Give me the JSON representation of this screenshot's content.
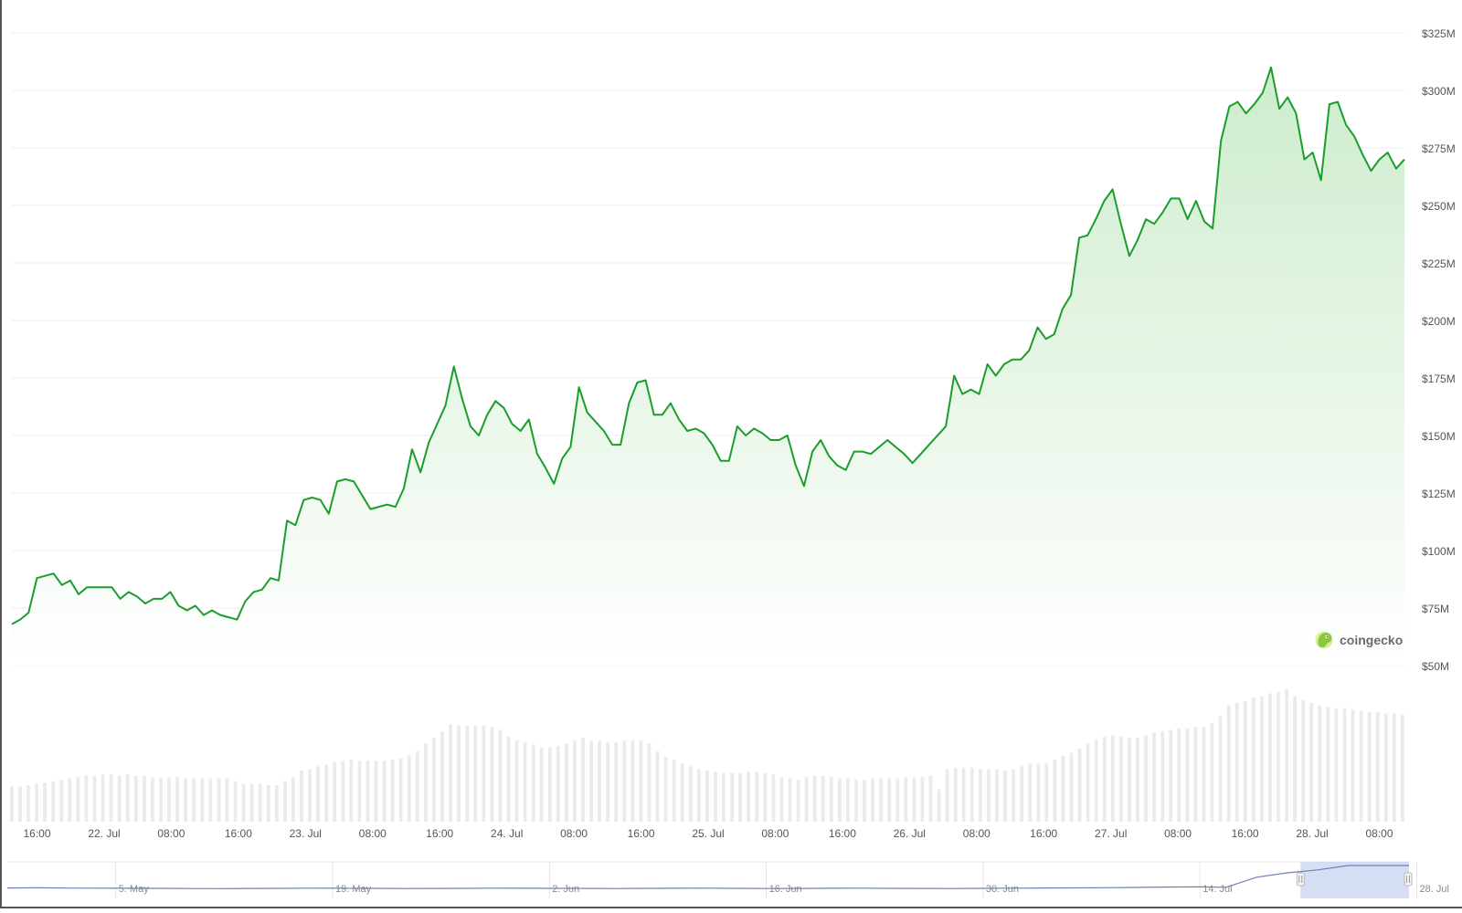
{
  "chart_data": {
    "type": "area",
    "title": "",
    "xlabel": "",
    "ylabel": "",
    "y_unit_prefix": "$",
    "y_ticks": [
      "$50M",
      "$75M",
      "$100M",
      "$125M",
      "$150M",
      "$175M",
      "$200M",
      "$225M",
      "$250M",
      "$275M",
      "$300M",
      "$325M"
    ],
    "ylim": [
      50,
      325
    ],
    "grid": true,
    "x_ticks": [
      "16:00",
      "22. Jul",
      "08:00",
      "16:00",
      "23. Jul",
      "08:00",
      "16:00",
      "24. Jul",
      "08:00",
      "16:00",
      "25. Jul",
      "08:00",
      "16:00",
      "26. Jul",
      "08:00",
      "16:00",
      "27. Jul",
      "08:00",
      "16:00",
      "28. Jul",
      "08:00"
    ],
    "x_start_hour": 13,
    "x_end_hour": 179,
    "series": [
      {
        "values": [
          68,
          70,
          73,
          88,
          89,
          90,
          85,
          87,
          81,
          84,
          84,
          84,
          84,
          79,
          82,
          80,
          77,
          79,
          79,
          82,
          76,
          74,
          76,
          72,
          74,
          72,
          71,
          70,
          78,
          82,
          83,
          88,
          87,
          113,
          111,
          122,
          123,
          122,
          116,
          130,
          131,
          130,
          124,
          118,
          119,
          120,
          119,
          127,
          144,
          134,
          147,
          155,
          163,
          180,
          166,
          154,
          150,
          159,
          165,
          162,
          155,
          152,
          157,
          142,
          136,
          129,
          140,
          145,
          171,
          160,
          156,
          152,
          146,
          146,
          164,
          173,
          174,
          159,
          159,
          164,
          157,
          152,
          153,
          151,
          146,
          139,
          139,
          154,
          150,
          153,
          151,
          148,
          148,
          150,
          137,
          128,
          143,
          148,
          141,
          137,
          135,
          143,
          143,
          142,
          145,
          148,
          145,
          142,
          138,
          142,
          146,
          150,
          154,
          176,
          168,
          170,
          168,
          181,
          176,
          181,
          183,
          183,
          187,
          197,
          192,
          194,
          205,
          211,
          236,
          237,
          244,
          252,
          257,
          242,
          228,
          235,
          244,
          242,
          247,
          253,
          253,
          244,
          252,
          243,
          240,
          278,
          293,
          295,
          290,
          294,
          299,
          310,
          292,
          297,
          290,
          270,
          273,
          261,
          294,
          295,
          285,
          280,
          272,
          265,
          270,
          273,
          266,
          270
        ]
      }
    ],
    "volume_relative": [
      0.26,
      0.26,
      0.27,
      0.28,
      0.29,
      0.3,
      0.31,
      0.32,
      0.33,
      0.34,
      0.34,
      0.35,
      0.35,
      0.34,
      0.35,
      0.34,
      0.34,
      0.33,
      0.33,
      0.33,
      0.33,
      0.32,
      0.32,
      0.32,
      0.32,
      0.32,
      0.32,
      0.3,
      0.28,
      0.28,
      0.28,
      0.27,
      0.27,
      0.3,
      0.33,
      0.38,
      0.39,
      0.41,
      0.42,
      0.44,
      0.45,
      0.46,
      0.45,
      0.45,
      0.45,
      0.45,
      0.46,
      0.47,
      0.49,
      0.52,
      0.58,
      0.62,
      0.67,
      0.72,
      0.71,
      0.71,
      0.71,
      0.71,
      0.7,
      0.68,
      0.63,
      0.6,
      0.59,
      0.57,
      0.55,
      0.55,
      0.56,
      0.58,
      0.6,
      0.62,
      0.6,
      0.6,
      0.59,
      0.59,
      0.6,
      0.6,
      0.6,
      0.58,
      0.52,
      0.48,
      0.46,
      0.43,
      0.41,
      0.39,
      0.38,
      0.37,
      0.36,
      0.36,
      0.36,
      0.37,
      0.37,
      0.36,
      0.35,
      0.33,
      0.32,
      0.31,
      0.33,
      0.34,
      0.34,
      0.33,
      0.32,
      0.32,
      0.31,
      0.31,
      0.32,
      0.32,
      0.32,
      0.32,
      0.33,
      0.33,
      0.33,
      0.34,
      0.24,
      0.39,
      0.4,
      0.4,
      0.4,
      0.39,
      0.39,
      0.39,
      0.38,
      0.39,
      0.41,
      0.43,
      0.43,
      0.43,
      0.46,
      0.49,
      0.51,
      0.54,
      0.58,
      0.61,
      0.63,
      0.64,
      0.63,
      0.62,
      0.62,
      0.64,
      0.66,
      0.67,
      0.68,
      0.69,
      0.69,
      0.7,
      0.7,
      0.73,
      0.78,
      0.86,
      0.88,
      0.89,
      0.92,
      0.93,
      0.95,
      0.96,
      0.98,
      0.93,
      0.9,
      0.88,
      0.86,
      0.85,
      0.84,
      0.84,
      0.83,
      0.82,
      0.81,
      0.81,
      0.8,
      0.8,
      0.79
    ],
    "navigator": {
      "x_ticks": [
        "5. May",
        "19. May",
        "2. Jun",
        "16. Jun",
        "30. Jun",
        "14. Jul",
        "28. Jul"
      ],
      "values": [
        0.35,
        0.4,
        0.32,
        0.3,
        0.28,
        0.25,
        0.2,
        0.18,
        0.22,
        0.25,
        0.3,
        0.28,
        0.24,
        0.2,
        0.22,
        0.26,
        0.3,
        0.28,
        0.25,
        0.22,
        0.2,
        0.24,
        0.28,
        0.3,
        0.25,
        0.2,
        0.23,
        0.27,
        0.3,
        0.26,
        0.22,
        0.2,
        0.25,
        0.3,
        0.35,
        0.38,
        0.42,
        0.5,
        0.6,
        0.65,
        0.55,
        0.6,
        0.75,
        0.85,
        1.0,
        1.0,
        1.0
      ],
      "selected_range": [
        "21. Jul",
        "28. Jul"
      ]
    },
    "legend": "none"
  },
  "colors": {
    "line": "#1a9e2b",
    "area_top": "#cdeccd",
    "area_bottom": "#ffffff",
    "grid": "#ececec",
    "volume_bar": "#ebebed",
    "axis_text": "#555555",
    "navigator_line": "#6d7fb8",
    "navigator_mask": "#c7d3ef",
    "logo_body": "#8dc63f"
  },
  "watermark": {
    "text": "coingecko",
    "icon": "gecko-logo-icon"
  }
}
